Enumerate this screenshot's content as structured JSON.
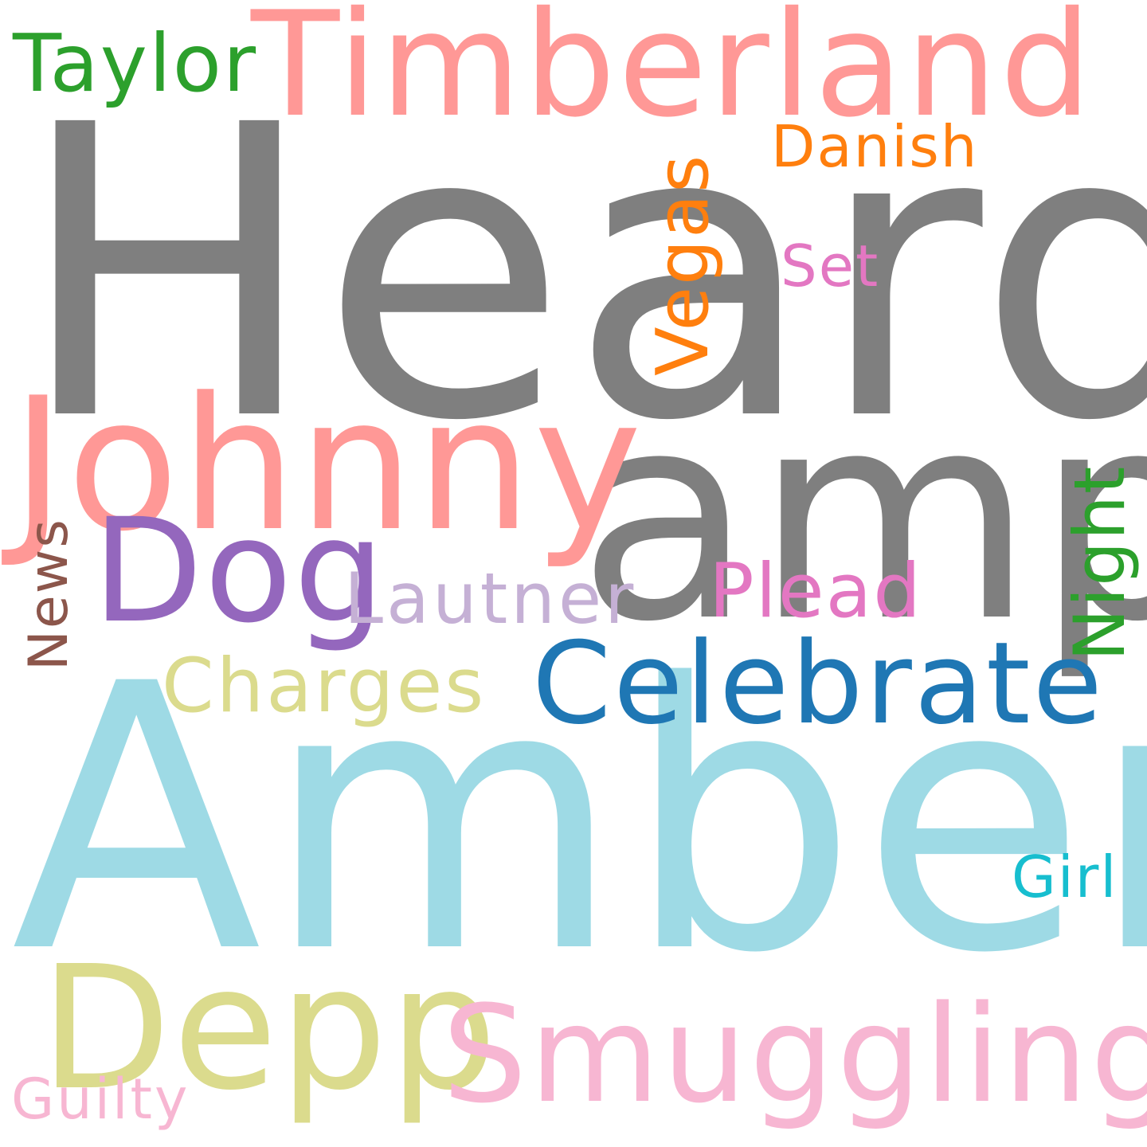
{
  "words": {
    "heard": {
      "text": "Heard",
      "color": "#7f7f7f"
    },
    "timberland": {
      "text": "Timberland",
      "color": "#ff9896"
    },
    "taylor": {
      "text": "Taylor",
      "color": "#2ca02c"
    },
    "danish": {
      "text": "Danish",
      "color": "#ff7f0e"
    },
    "vegas": {
      "text": "Vegas",
      "color": "#ff7f0e"
    },
    "set": {
      "text": "Set",
      "color": "#e377c2"
    },
    "johnny": {
      "text": "Johnny",
      "color": "#ff9896"
    },
    "amp": {
      "text": "amp",
      "color": "#7f7f7f"
    },
    "night": {
      "text": "Night",
      "color": "#2ca02c"
    },
    "dog": {
      "text": "Dog",
      "color": "#9467bd"
    },
    "news": {
      "text": "News",
      "color": "#8c564b"
    },
    "lautner": {
      "text": "Lautner",
      "color": "#c5b0d5"
    },
    "plead": {
      "text": "Plead",
      "color": "#e377c2"
    },
    "charges": {
      "text": "Charges",
      "color": "#dbdb8d"
    },
    "celebrate": {
      "text": "Celebrate",
      "color": "#1f77b4"
    },
    "amber": {
      "text": "Amber",
      "color": "#9edae5"
    },
    "girl": {
      "text": "Girl",
      "color": "#17becf"
    },
    "depp": {
      "text": "Depp",
      "color": "#dbdb8d"
    },
    "smuggling": {
      "text": "Smuggling",
      "color": "#f7b6d2"
    },
    "guilty": {
      "text": "Guilty",
      "color": "#f7b6d2"
    }
  }
}
